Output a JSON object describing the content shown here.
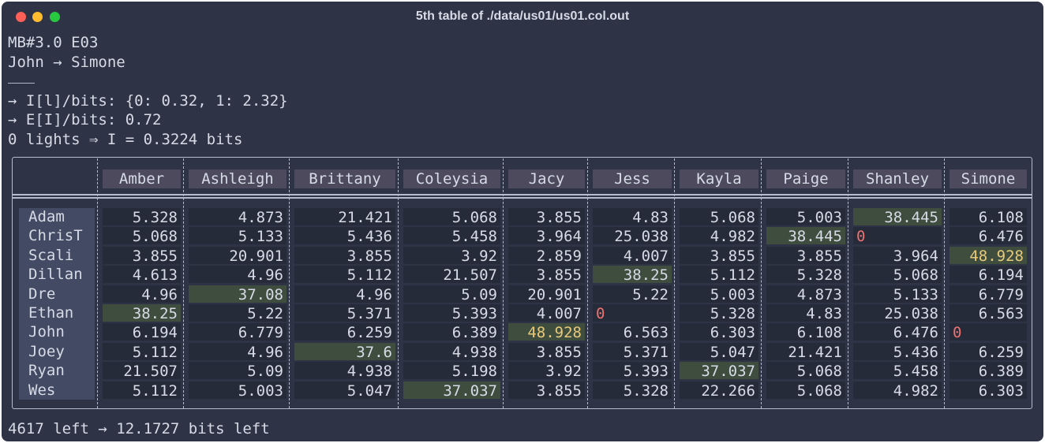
{
  "window": {
    "title": "5th table of ./data/us01/us01.col.out"
  },
  "info": {
    "line1": "MB#3.0 E03",
    "line2": "John → Simone",
    "line3": "→ I[l]/bits: {0: 0.32, 1: 2.32}",
    "line4": "→ E[I]/bits: 0.72",
    "line5": "0 lights ⇒ I = 0.3224 bits"
  },
  "table": {
    "columns": [
      "Amber",
      "Ashleigh",
      "Brittany",
      "Coleysia",
      "Jacy",
      "Jess",
      "Kayla",
      "Paige",
      "Shanley",
      "Simone"
    ],
    "rows": [
      {
        "name": "Adam",
        "values": [
          "5.328",
          "4.873",
          "21.421",
          "5.068",
          "3.855",
          "4.83",
          "5.068",
          "5.003",
          "38.445",
          "6.108"
        ]
      },
      {
        "name": "ChrisT",
        "values": [
          "5.068",
          "5.133",
          "5.436",
          "5.458",
          "3.964",
          "25.038",
          "4.982",
          "38.445",
          "0",
          "6.476"
        ]
      },
      {
        "name": "Scali",
        "values": [
          "3.855",
          "20.901",
          "3.855",
          "3.92",
          "2.859",
          "4.007",
          "3.855",
          "3.855",
          "3.964",
          "48.928"
        ]
      },
      {
        "name": "Dillan",
        "values": [
          "4.613",
          "4.96",
          "5.112",
          "21.507",
          "3.855",
          "38.25",
          "5.112",
          "5.328",
          "5.068",
          "6.194"
        ]
      },
      {
        "name": "Dre",
        "values": [
          "4.96",
          "37.08",
          "4.96",
          "5.09",
          "20.901",
          "5.22",
          "5.003",
          "4.873",
          "5.133",
          "6.779"
        ]
      },
      {
        "name": "Ethan",
        "values": [
          "38.25",
          "5.22",
          "5.371",
          "5.393",
          "4.007",
          "0",
          "5.328",
          "4.83",
          "25.038",
          "6.563"
        ]
      },
      {
        "name": "John",
        "values": [
          "6.194",
          "6.779",
          "6.259",
          "6.389",
          "48.928",
          "6.563",
          "6.303",
          "6.108",
          "6.476",
          "0"
        ]
      },
      {
        "name": "Joey",
        "values": [
          "5.112",
          "4.96",
          "37.6",
          "4.938",
          "3.855",
          "5.371",
          "5.047",
          "21.421",
          "5.436",
          "6.259"
        ]
      },
      {
        "name": "Ryan",
        "values": [
          "21.507",
          "5.09",
          "4.938",
          "5.198",
          "3.92",
          "5.393",
          "37.037",
          "5.068",
          "5.458",
          "6.389"
        ]
      },
      {
        "name": "Wes",
        "values": [
          "5.112",
          "5.003",
          "5.047",
          "37.037",
          "3.855",
          "5.328",
          "22.266",
          "5.068",
          "4.982",
          "6.303"
        ]
      }
    ],
    "highlights": [
      [
        0,
        8
      ],
      [
        1,
        7
      ],
      [
        2,
        9
      ],
      [
        3,
        5
      ],
      [
        4,
        1
      ],
      [
        5,
        0
      ],
      [
        6,
        4
      ],
      [
        7,
        2
      ],
      [
        8,
        6
      ],
      [
        9,
        3
      ]
    ],
    "gold": [
      [
        2,
        9
      ],
      [
        6,
        4
      ]
    ]
  },
  "footer": {
    "text": "4617 left → 12.1727 bits left"
  },
  "colors": {
    "background": "#2e3446",
    "highlight": "#3f4d3f",
    "zero": "#ec7270",
    "gold": "#e8c97a"
  }
}
